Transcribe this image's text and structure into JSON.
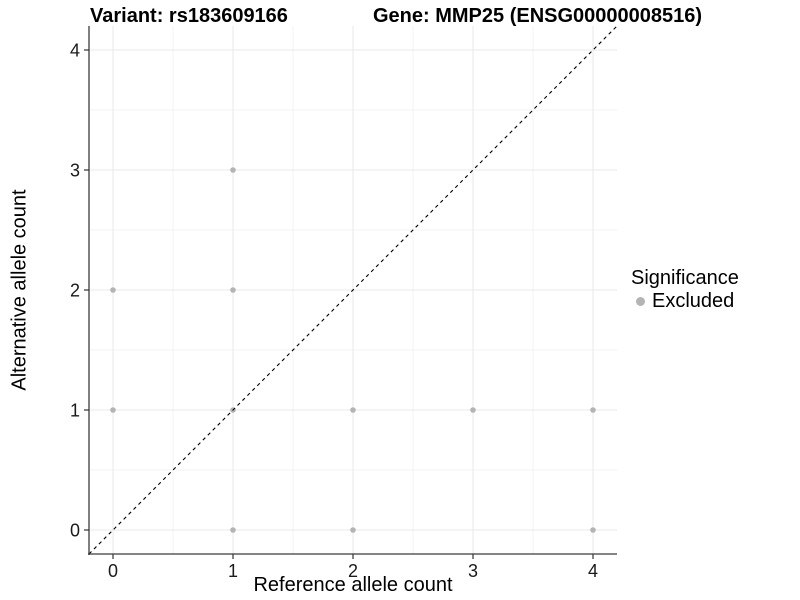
{
  "title": {
    "variant": "Variant: rs183609166",
    "gene": "Gene: MMP25 (ENSG00000008516)"
  },
  "axes": {
    "x_label": "Reference allele count",
    "y_label": "Alternative allele count"
  },
  "legend": {
    "title": "Significance",
    "items": [
      {
        "label": "Excluded",
        "color": "#b4b4b4"
      }
    ]
  },
  "colors": {
    "background": "#ffffff",
    "major_grid": "#e8e8e8",
    "minor_grid": "#f3f3f3",
    "axis_line": "#3c3c3c",
    "tick_mark": "#333333",
    "tick_label": "#1a1a1a",
    "point": "#b4b4b4",
    "reference_line": "#000000"
  },
  "chart_data": {
    "type": "scatter",
    "title": "Variant: rs183609166    Gene: MMP25 (ENSG00000008516)",
    "xlabel": "Reference allele count",
    "ylabel": "Alternative allele count",
    "xlim": [
      -0.2,
      4.2
    ],
    "ylim": [
      -0.2,
      4.2
    ],
    "x_ticks": [
      0,
      1,
      2,
      3,
      4
    ],
    "y_ticks": [
      0,
      1,
      2,
      3,
      4
    ],
    "grid": true,
    "legend_position": "right",
    "series": [
      {
        "name": "Excluded",
        "color": "#b4b4b4",
        "points": [
          [
            0,
            1
          ],
          [
            0,
            2
          ],
          [
            1,
            0
          ],
          [
            1,
            1
          ],
          [
            1,
            2
          ],
          [
            1,
            3
          ],
          [
            2,
            0
          ],
          [
            2,
            1
          ],
          [
            3,
            1
          ],
          [
            4,
            0
          ],
          [
            4,
            1
          ]
        ]
      }
    ],
    "reference_line": {
      "kind": "identity",
      "from": [
        -0.2,
        -0.2
      ],
      "to": [
        4.2,
        4.2
      ],
      "style": "dashed",
      "color": "#000000"
    }
  }
}
